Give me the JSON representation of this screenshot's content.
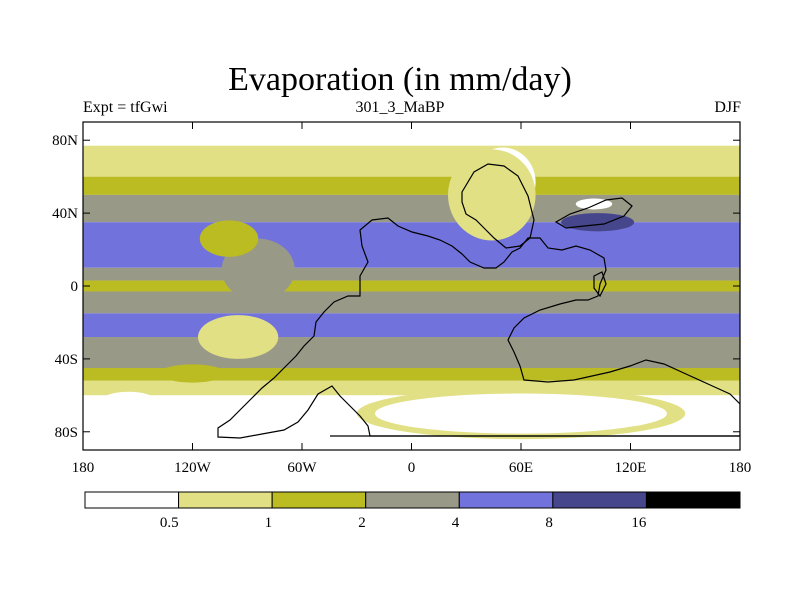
{
  "title": "Evaporation (in mm/day)",
  "subtitles": {
    "left": "Expt = tfGwi",
    "center": "301_3_MaBP",
    "right": "DJF"
  },
  "axes": {
    "x_ticks": [
      {
        "lon": -180,
        "label": "180"
      },
      {
        "lon": -120,
        "label": "120W"
      },
      {
        "lon": -60,
        "label": "60W"
      },
      {
        "lon": 0,
        "label": "0"
      },
      {
        "lon": 60,
        "label": "60E"
      },
      {
        "lon": 120,
        "label": "120E"
      },
      {
        "lon": 180,
        "label": "180"
      }
    ],
    "y_ticks": [
      {
        "lat": 80,
        "label": "80N"
      },
      {
        "lat": 40,
        "label": "40N"
      },
      {
        "lat": 0,
        "label": "0"
      },
      {
        "lat": -40,
        "label": "40S"
      },
      {
        "lat": -80,
        "label": "80S"
      }
    ],
    "lon_range": [
      -180,
      180
    ],
    "lat_range": [
      -90,
      90
    ]
  },
  "colorbar": {
    "colors": [
      "#ffffff",
      "#e1e084",
      "#bbbb22",
      "#999988",
      "#7272dc",
      "#46468c",
      "#000000"
    ],
    "labels": [
      "0.5",
      "1",
      "2",
      "4",
      "8",
      "16"
    ],
    "units": "mm/day"
  },
  "chart_data": {
    "type": "heatmap",
    "title": "Evaporation (in mm/day)",
    "variable": "Evaporation",
    "units": "mm/day",
    "season": "DJF",
    "experiment": "tfGwi",
    "period": "301_3_MaBP",
    "levels": [
      0.5,
      1,
      2,
      4,
      8,
      16
    ],
    "xlim": [
      -180,
      180
    ],
    "ylim": [
      -90,
      90
    ],
    "zonal_bands": [
      {
        "lat_from": 90,
        "lat_to": 77,
        "class": 0
      },
      {
        "lat_from": 77,
        "lat_to": 60,
        "class": 1
      },
      {
        "lat_from": 60,
        "lat_to": 50,
        "class": 2
      },
      {
        "lat_from": 50,
        "lat_to": 35,
        "class": 3
      },
      {
        "lat_from": 35,
        "lat_to": 10,
        "class": 4
      },
      {
        "lat_from": 10,
        "lat_to": 3,
        "class": 3
      },
      {
        "lat_from": 3,
        "lat_to": -3,
        "class": 2
      },
      {
        "lat_from": -3,
        "lat_to": -15,
        "class": 3
      },
      {
        "lat_from": -15,
        "lat_to": -28,
        "class": 4
      },
      {
        "lat_from": -28,
        "lat_to": -45,
        "class": 3
      },
      {
        "lat_from": -45,
        "lat_to": -52,
        "class": 2
      },
      {
        "lat_from": -52,
        "lat_to": -60,
        "class": 1
      },
      {
        "lat_from": -60,
        "lat_to": -90,
        "class": 0
      }
    ],
    "features": [
      {
        "name": "western-continent",
        "class": 3,
        "lon": -84,
        "lat": 9,
        "rx": 20,
        "ry": 17
      },
      {
        "name": "western-continent-interior",
        "class": 2,
        "lon": -100,
        "lat": 26,
        "rx": 16,
        "ry": 10
      },
      {
        "name": "northern-continent",
        "class": 0,
        "lon": 50,
        "lat": 57,
        "rx": 18,
        "ry": 19
      },
      {
        "name": "northern-continent-fringe",
        "class": 1,
        "lon": 44,
        "lat": 50,
        "rx": 24,
        "ry": 25
      },
      {
        "name": "high-evaporation-sea",
        "class": 5,
        "lon": 102,
        "lat": 35,
        "rx": 20,
        "ry": 5
      },
      {
        "name": "eastern-island",
        "class": 0,
        "lon": 100,
        "lat": 45,
        "rx": 10,
        "ry": 3
      },
      {
        "name": "southern-dry-patch",
        "class": 0,
        "lon": -95,
        "lat": -28,
        "rx": 16,
        "ry": 8
      },
      {
        "name": "southern-dry-patch-fringe",
        "class": 1,
        "lon": -95,
        "lat": -28,
        "rx": 22,
        "ry": 12
      },
      {
        "name": "southwest-dry-patch",
        "class": 0,
        "lon": -155,
        "lat": -66,
        "rx": 18,
        "ry": 8
      },
      {
        "name": "polar-continent-fringe",
        "class": 1,
        "lon": 60,
        "lat": -70,
        "rx": 90,
        "ry": 14
      },
      {
        "name": "polar-continent",
        "class": 0,
        "lon": 60,
        "lat": -70,
        "rx": 80,
        "ry": 11
      },
      {
        "name": "coastal-moist-strip",
        "class": 2,
        "lon": -120,
        "lat": -48,
        "rx": 18,
        "ry": 5
      }
    ]
  }
}
